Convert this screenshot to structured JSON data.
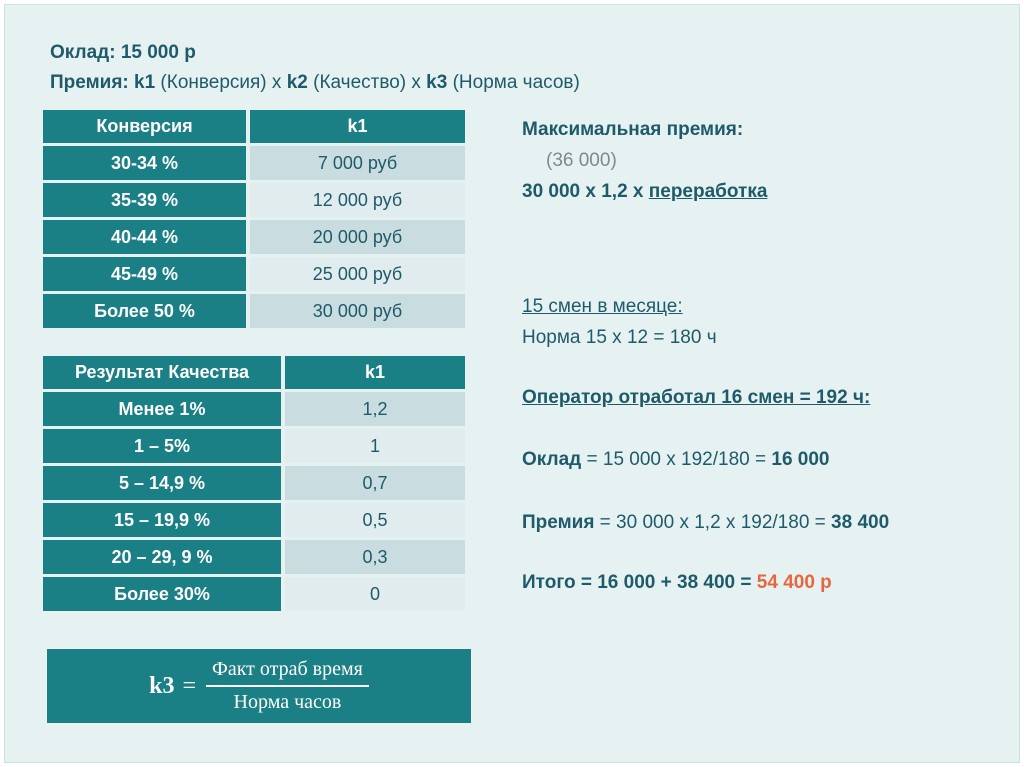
{
  "header": {
    "line1": "Оклад: 15 000 р",
    "line2_prefix": "Премия: ",
    "k1": "k1",
    "k1_desc": " (Конверсия) х ",
    "k2": "k2",
    "k2_desc": " (Качество) х ",
    "k3": "k3",
    "k3_desc": " (Норма часов)"
  },
  "conversion_table": {
    "headers": [
      "Конверсия",
      "k1"
    ],
    "rows": [
      {
        "label": "30-34 %",
        "value": "7 000 руб"
      },
      {
        "label": "35-39 %",
        "value": "12 000 руб"
      },
      {
        "label": "40-44 %",
        "value": "20 000 руб"
      },
      {
        "label": "45-49 %",
        "value": "25 000 руб"
      },
      {
        "label": "Более 50 %",
        "value": "30 000 руб"
      }
    ]
  },
  "quality_table": {
    "headers": [
      "Результат Качества",
      "k1"
    ],
    "rows": [
      {
        "label": "Менее 1%",
        "value": "1,2"
      },
      {
        "label": "1 – 5%",
        "value": "1"
      },
      {
        "label": "5 – 14,9 %",
        "value": "0,7"
      },
      {
        "label": "15 – 19,9 %",
        "value": "0,5"
      },
      {
        "label": "20 – 29, 9 %",
        "value": "0,3"
      },
      {
        "label": "Более 30%",
        "value": "0"
      }
    ]
  },
  "formula": {
    "lhs": "k3",
    "eq": "=",
    "numerator": "Факт отраб время",
    "denominator": "Норма часов"
  },
  "right": {
    "max_bonus_title": "Максимальная премия:",
    "max_bonus_value": "(36 000)",
    "max_bonus_calc_prefix": "30 000 х 1,2 х ",
    "max_bonus_calc_link": "переработка",
    "shifts_title": "15 смен в месяце:",
    "shifts_norm": "Норма 15 х 12 = 180 ч",
    "operator_worked": "Оператор отработал 16 смен = 192 ч:",
    "salary_label": "Оклад",
    "salary_calc": " = 15 000 х 192/180 = ",
    "salary_result": "16 000",
    "bonus_label": "Премия",
    "bonus_calc": " = 30 000 х 1,2 х 192/180 = ",
    "bonus_result": "38 400",
    "total_calc": "Итого = 16 000 + 38 400 = ",
    "total_result": "54 400 р"
  },
  "colors": {
    "accent": "#1b7f86",
    "text": "#1f5a6a",
    "highlight": "#e8663d",
    "background": "#e6f2f2"
  }
}
